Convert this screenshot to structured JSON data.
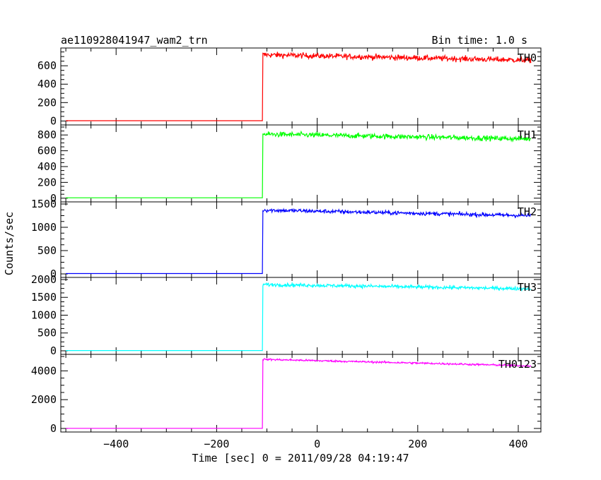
{
  "chart_data": {
    "type": "line",
    "title_left": "ae110928041947_wam2_trn",
    "title_right": "Bin time: 1.0 s",
    "ylabel": "Counts/sec",
    "xlabel": "Time [sec] 0 = 2011/09/28 04:19:47",
    "xlim": [
      -510,
      445
    ],
    "x_ticks": [
      -400,
      -200,
      0,
      200,
      400
    ],
    "x_ticklabels": [
      "−400",
      "−200",
      "0",
      "200",
      "400"
    ],
    "trigger_time": -108,
    "data_start": -500,
    "data_end": 425,
    "bin_time": 1.0,
    "panels": [
      {
        "name": "TH0",
        "color": "#ff0000",
        "ylim": [
          -20,
          770
        ],
        "yticks": [
          0,
          200,
          400,
          600
        ],
        "pre_level": 3,
        "post_start": 720,
        "post_end": 660,
        "noise": 28
      },
      {
        "name": "TH1",
        "color": "#00ff00",
        "ylim": [
          -20,
          900
        ],
        "yticks": [
          0,
          200,
          400,
          600,
          800
        ],
        "pre_level": 5,
        "post_start": 810,
        "post_end": 750,
        "noise": 30
      },
      {
        "name": "TH2",
        "color": "#0000ff",
        "ylim": [
          -30,
          1500
        ],
        "yticks": [
          0,
          500,
          1000,
          1500
        ],
        "pre_level": 8,
        "post_start": 1370,
        "post_end": 1250,
        "noise": 40
      },
      {
        "name": "TH3",
        "color": "#00ffff",
        "ylim": [
          -40,
          2000
        ],
        "yticks": [
          0,
          500,
          1000,
          1500,
          2000
        ],
        "pre_level": 8,
        "post_start": 1860,
        "post_end": 1740,
        "noise": 45
      },
      {
        "name": "TH0123",
        "color": "#ff00ff",
        "ylim": [
          -100,
          5000
        ],
        "yticks": [
          0,
          2000,
          4000
        ],
        "pre_level": 10,
        "post_start": 4800,
        "post_end": 4350,
        "noise": 60
      }
    ]
  }
}
